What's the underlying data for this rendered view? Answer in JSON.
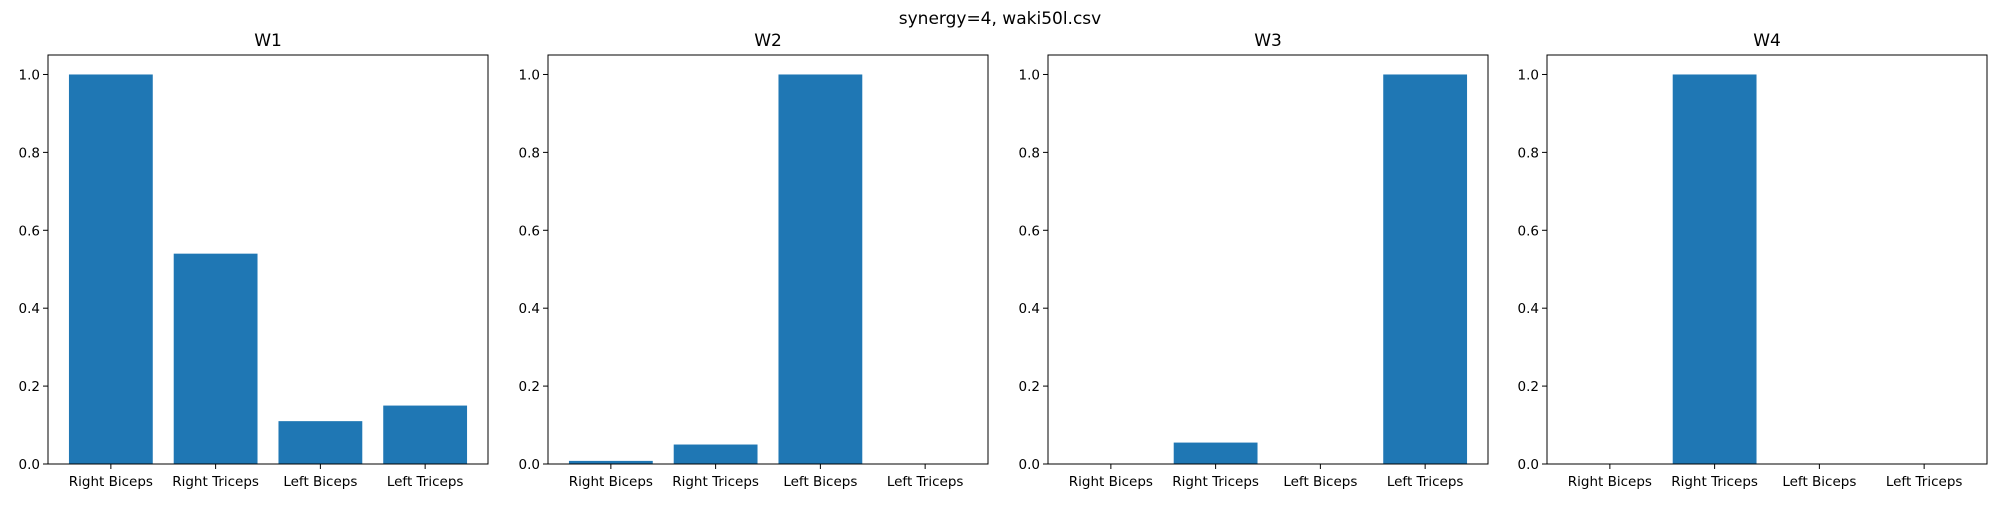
{
  "figure": {
    "suptitle": "synergy=4, waki50l.csv"
  },
  "chart_data": [
    {
      "type": "bar",
      "title": "W1",
      "categories": [
        "Right Biceps",
        "Right Triceps",
        "Left Biceps",
        "Left Triceps"
      ],
      "values": [
        1.0,
        0.54,
        0.11,
        0.15
      ],
      "ylim": [
        0,
        1.05
      ],
      "yticks": [
        "0.0",
        "0.2",
        "0.4",
        "0.6",
        "0.8",
        "1.0"
      ],
      "grid": false,
      "bar_color": "#1f77b4"
    },
    {
      "type": "bar",
      "title": "W2",
      "categories": [
        "Right Biceps",
        "Right Triceps",
        "Left Biceps",
        "Left Triceps"
      ],
      "values": [
        0.008,
        0.05,
        1.0,
        0.0
      ],
      "ylim": [
        0,
        1.05
      ],
      "yticks": [
        "0.0",
        "0.2",
        "0.4",
        "0.6",
        "0.8",
        "1.0"
      ],
      "grid": false,
      "bar_color": "#1f77b4"
    },
    {
      "type": "bar",
      "title": "W3",
      "categories": [
        "Right Biceps",
        "Right Triceps",
        "Left Biceps",
        "Left Triceps"
      ],
      "values": [
        0.0,
        0.055,
        0.0,
        1.0
      ],
      "ylim": [
        0,
        1.05
      ],
      "yticks": [
        "0.0",
        "0.2",
        "0.4",
        "0.6",
        "0.8",
        "1.0"
      ],
      "grid": false,
      "bar_color": "#1f77b4"
    },
    {
      "type": "bar",
      "title": "W4",
      "categories": [
        "Right Biceps",
        "Right Triceps",
        "Left Biceps",
        "Left Triceps"
      ],
      "values": [
        0.0,
        1.0,
        0.0,
        0.0
      ],
      "ylim": [
        0,
        1.05
      ],
      "yticks": [
        "0.0",
        "0.2",
        "0.4",
        "0.6",
        "0.8",
        "1.0"
      ],
      "grid": false,
      "bar_color": "#1f77b4"
    }
  ]
}
